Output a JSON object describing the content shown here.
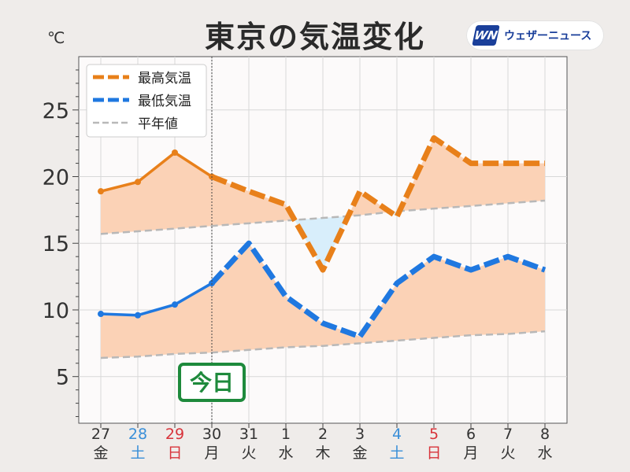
{
  "header": {
    "title": "東京の気温変化",
    "unit": "℃",
    "logo_mark": "WN",
    "logo_text": "ウェザーニュース"
  },
  "badge": {
    "label": "今日"
  },
  "colors": {
    "high": "#e8801a",
    "low": "#1f78e0",
    "normal": "#b8b8b8",
    "fill_warm": "#fbd2b6",
    "fill_cool": "#d8eefb",
    "saturday": "#3a8fd8",
    "sunday": "#d8333a",
    "weekday": "#333333",
    "badge": "#1e8a3c"
  },
  "chart_data": {
    "type": "line",
    "ylim": [
      1.5,
      29
    ],
    "y_ticks": [
      5,
      10,
      15,
      20,
      25
    ],
    "grid": true,
    "legend_position": "top-left",
    "today_index": 3,
    "categories": [
      "27",
      "28",
      "29",
      "30",
      "31",
      "1",
      "2",
      "3",
      "4",
      "5",
      "6",
      "7",
      "8"
    ],
    "weekdays": [
      "金",
      "土",
      "日",
      "月",
      "火",
      "水",
      "木",
      "金",
      "土",
      "日",
      "月",
      "火",
      "水"
    ],
    "day_type": [
      "weekday",
      "sat",
      "sun",
      "weekday",
      "weekday",
      "weekday",
      "weekday",
      "weekday",
      "sat",
      "sun",
      "weekday",
      "weekday",
      "weekday"
    ],
    "series": [
      {
        "name": "最高気温",
        "key": "high",
        "values": [
          18.9,
          19.6,
          21.8,
          20.0,
          18.9,
          17.9,
          13.0,
          18.9,
          17.0,
          22.9,
          21.0,
          21.0,
          21.0
        ]
      },
      {
        "name": "最低気温",
        "key": "low",
        "values": [
          9.7,
          9.6,
          10.4,
          12.0,
          15.0,
          11.0,
          9.0,
          8.0,
          12.0,
          14.0,
          13.0,
          14.0,
          13.0
        ]
      },
      {
        "name": "平年値",
        "key": "normal_high",
        "values": [
          15.7,
          15.9,
          16.1,
          16.3,
          16.5,
          16.7,
          16.9,
          17.1,
          17.4,
          17.6,
          17.8,
          18.0,
          18.2
        ]
      },
      {
        "name": "",
        "key": "normal_low",
        "values": [
          6.4,
          6.5,
          6.7,
          6.8,
          7.0,
          7.2,
          7.3,
          7.5,
          7.7,
          7.9,
          8.1,
          8.2,
          8.4
        ]
      }
    ],
    "legend": [
      "最高気温",
      "最低気温",
      "平年値"
    ]
  }
}
